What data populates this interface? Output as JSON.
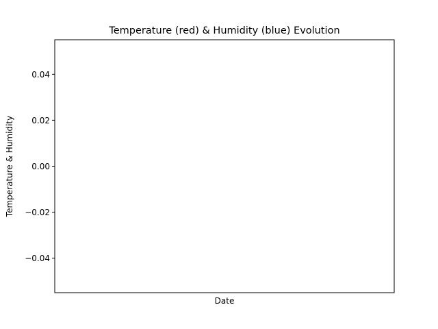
{
  "chart_data": {
    "type": "line",
    "title": "Temperature (red) & Humidity (blue) Evolution",
    "xlabel": "Date",
    "ylabel": "Temperature & Humidity",
    "ylim": [
      -0.055,
      0.055
    ],
    "yticks": [
      {
        "value": 0.04,
        "label": "0.04"
      },
      {
        "value": 0.02,
        "label": "0.02"
      },
      {
        "value": 0.0,
        "label": "0.00"
      },
      {
        "value": -0.02,
        "label": "−0.02"
      },
      {
        "value": -0.04,
        "label": "−0.04"
      }
    ],
    "xticks": [],
    "grid": false,
    "series": [
      {
        "color": "#ff0000",
        "x": [],
        "y": []
      },
      {
        "color": "#0000ff",
        "x": [],
        "y": []
      }
    ]
  }
}
